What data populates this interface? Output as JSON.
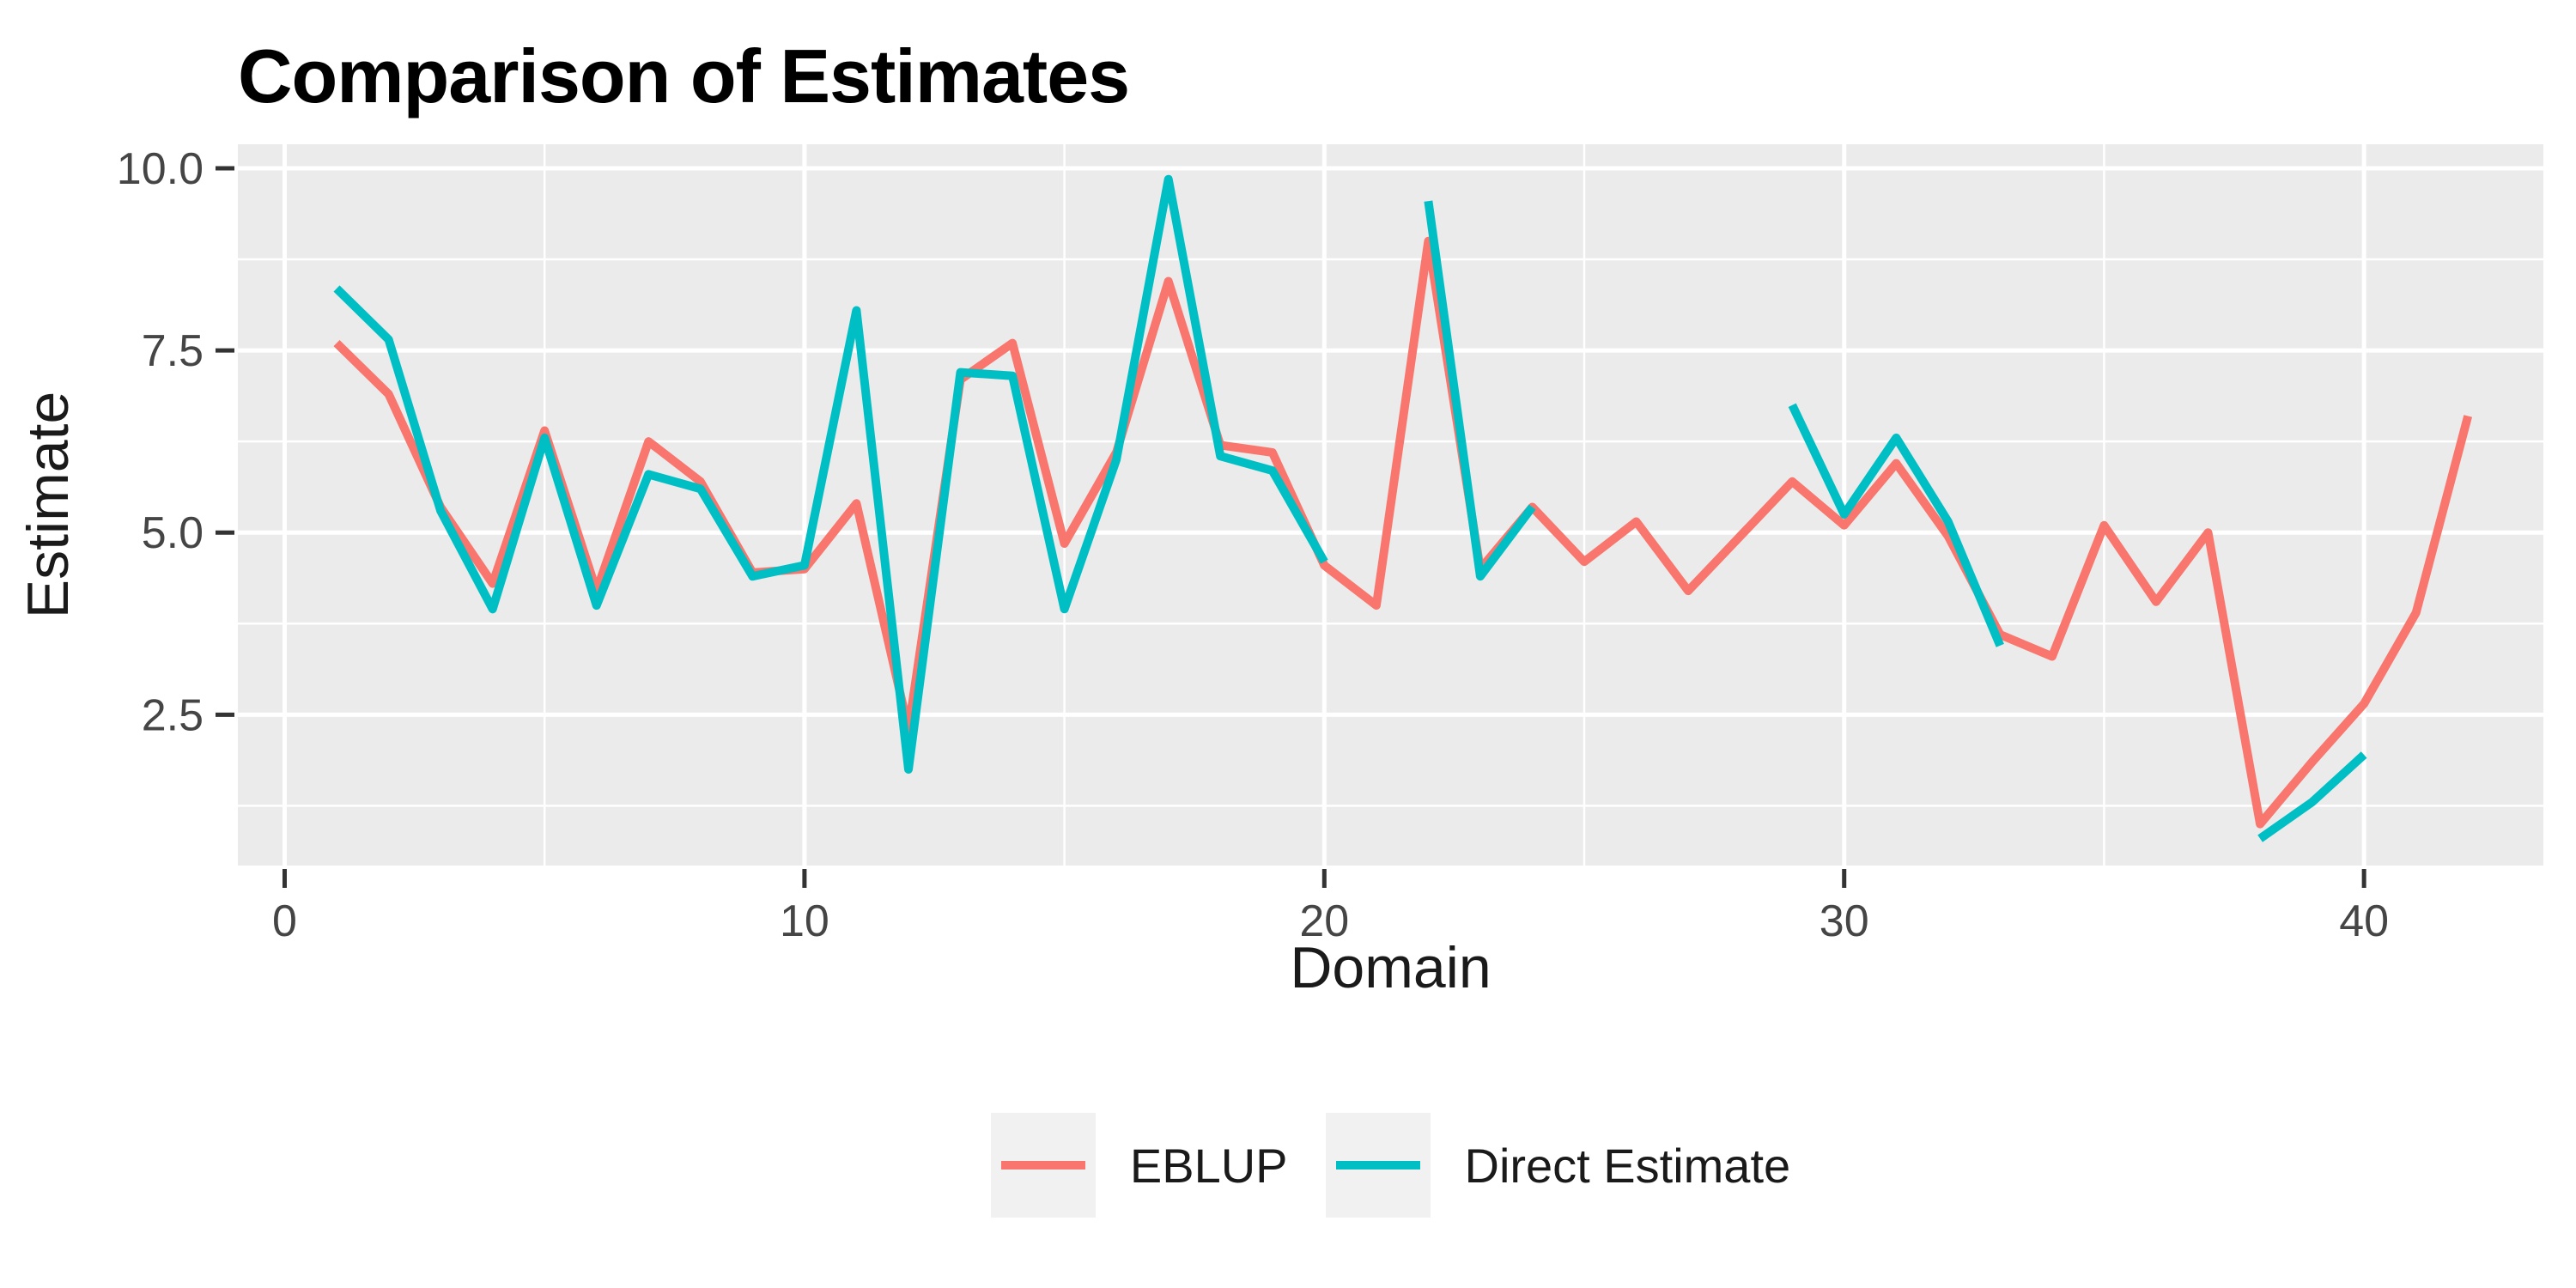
{
  "page": {
    "background": "#FFFFFF"
  },
  "chart_data": {
    "type": "line",
    "title": "Comparison of Estimates",
    "xlabel": "Domain",
    "ylabel": "Estimate",
    "legend_position": "bottom",
    "grid": true,
    "panel_bg": "#EBEBEB",
    "grid_color": "#FFFFFF",
    "tick_color": "#333333",
    "tick_label_color": "#454545",
    "axis_title_color": "#1A1A1A",
    "title_color": "#000000",
    "legend_key_bg": "#F1F1F1",
    "xlim": [
      -0.9,
      43.45
    ],
    "ylim": [
      0.43,
      10.33
    ],
    "x_ticks": [
      0,
      10,
      20,
      30,
      40
    ],
    "x_minor_ticks": [
      5,
      15,
      25,
      35
    ],
    "y_ticks": [
      {
        "value": 2.5,
        "label": "2.5"
      },
      {
        "value": 5.0,
        "label": "5.0"
      },
      {
        "value": 7.5,
        "label": "7.5"
      },
      {
        "value": 10.0,
        "label": "10.0"
      }
    ],
    "y_minor_ticks": [
      1.25,
      3.75,
      6.25,
      8.75
    ],
    "x": [
      1,
      2,
      3,
      4,
      5,
      6,
      7,
      8,
      9,
      10,
      11,
      12,
      13,
      14,
      15,
      16,
      17,
      18,
      19,
      20,
      21,
      22,
      23,
      24,
      25,
      26,
      27,
      28,
      29,
      30,
      31,
      32,
      33,
      34,
      35,
      36,
      37,
      38,
      39,
      40,
      41,
      42
    ],
    "series": [
      {
        "name": "EBLUP",
        "color": "#F8766D",
        "values": [
          7.6,
          6.9,
          5.35,
          4.3,
          6.4,
          4.2,
          6.25,
          5.7,
          4.45,
          4.5,
          5.4,
          2.3,
          7.1,
          7.6,
          4.85,
          6.1,
          8.45,
          6.2,
          6.1,
          4.55,
          4.0,
          9.0,
          4.5,
          5.35,
          4.6,
          5.15,
          4.2,
          4.95,
          5.7,
          5.1,
          5.95,
          4.95,
          3.6,
          3.3,
          5.1,
          4.05,
          5.0,
          1.0,
          1.85,
          2.65,
          3.9,
          6.6
        ]
      },
      {
        "name": "Direct Estimate",
        "color": "#00BFC4",
        "values": [
          8.35,
          7.65,
          5.3,
          3.95,
          6.3,
          4.0,
          5.8,
          5.6,
          4.4,
          4.55,
          8.05,
          1.75,
          7.2,
          7.15,
          3.95,
          6.0,
          9.85,
          6.05,
          5.85,
          4.6,
          null,
          9.55,
          4.4,
          5.35,
          null,
          null,
          null,
          null,
          6.75,
          5.25,
          6.3,
          5.15,
          3.45,
          null,
          null,
          null,
          null,
          0.8,
          1.3,
          1.95,
          null,
          null
        ]
      }
    ]
  }
}
